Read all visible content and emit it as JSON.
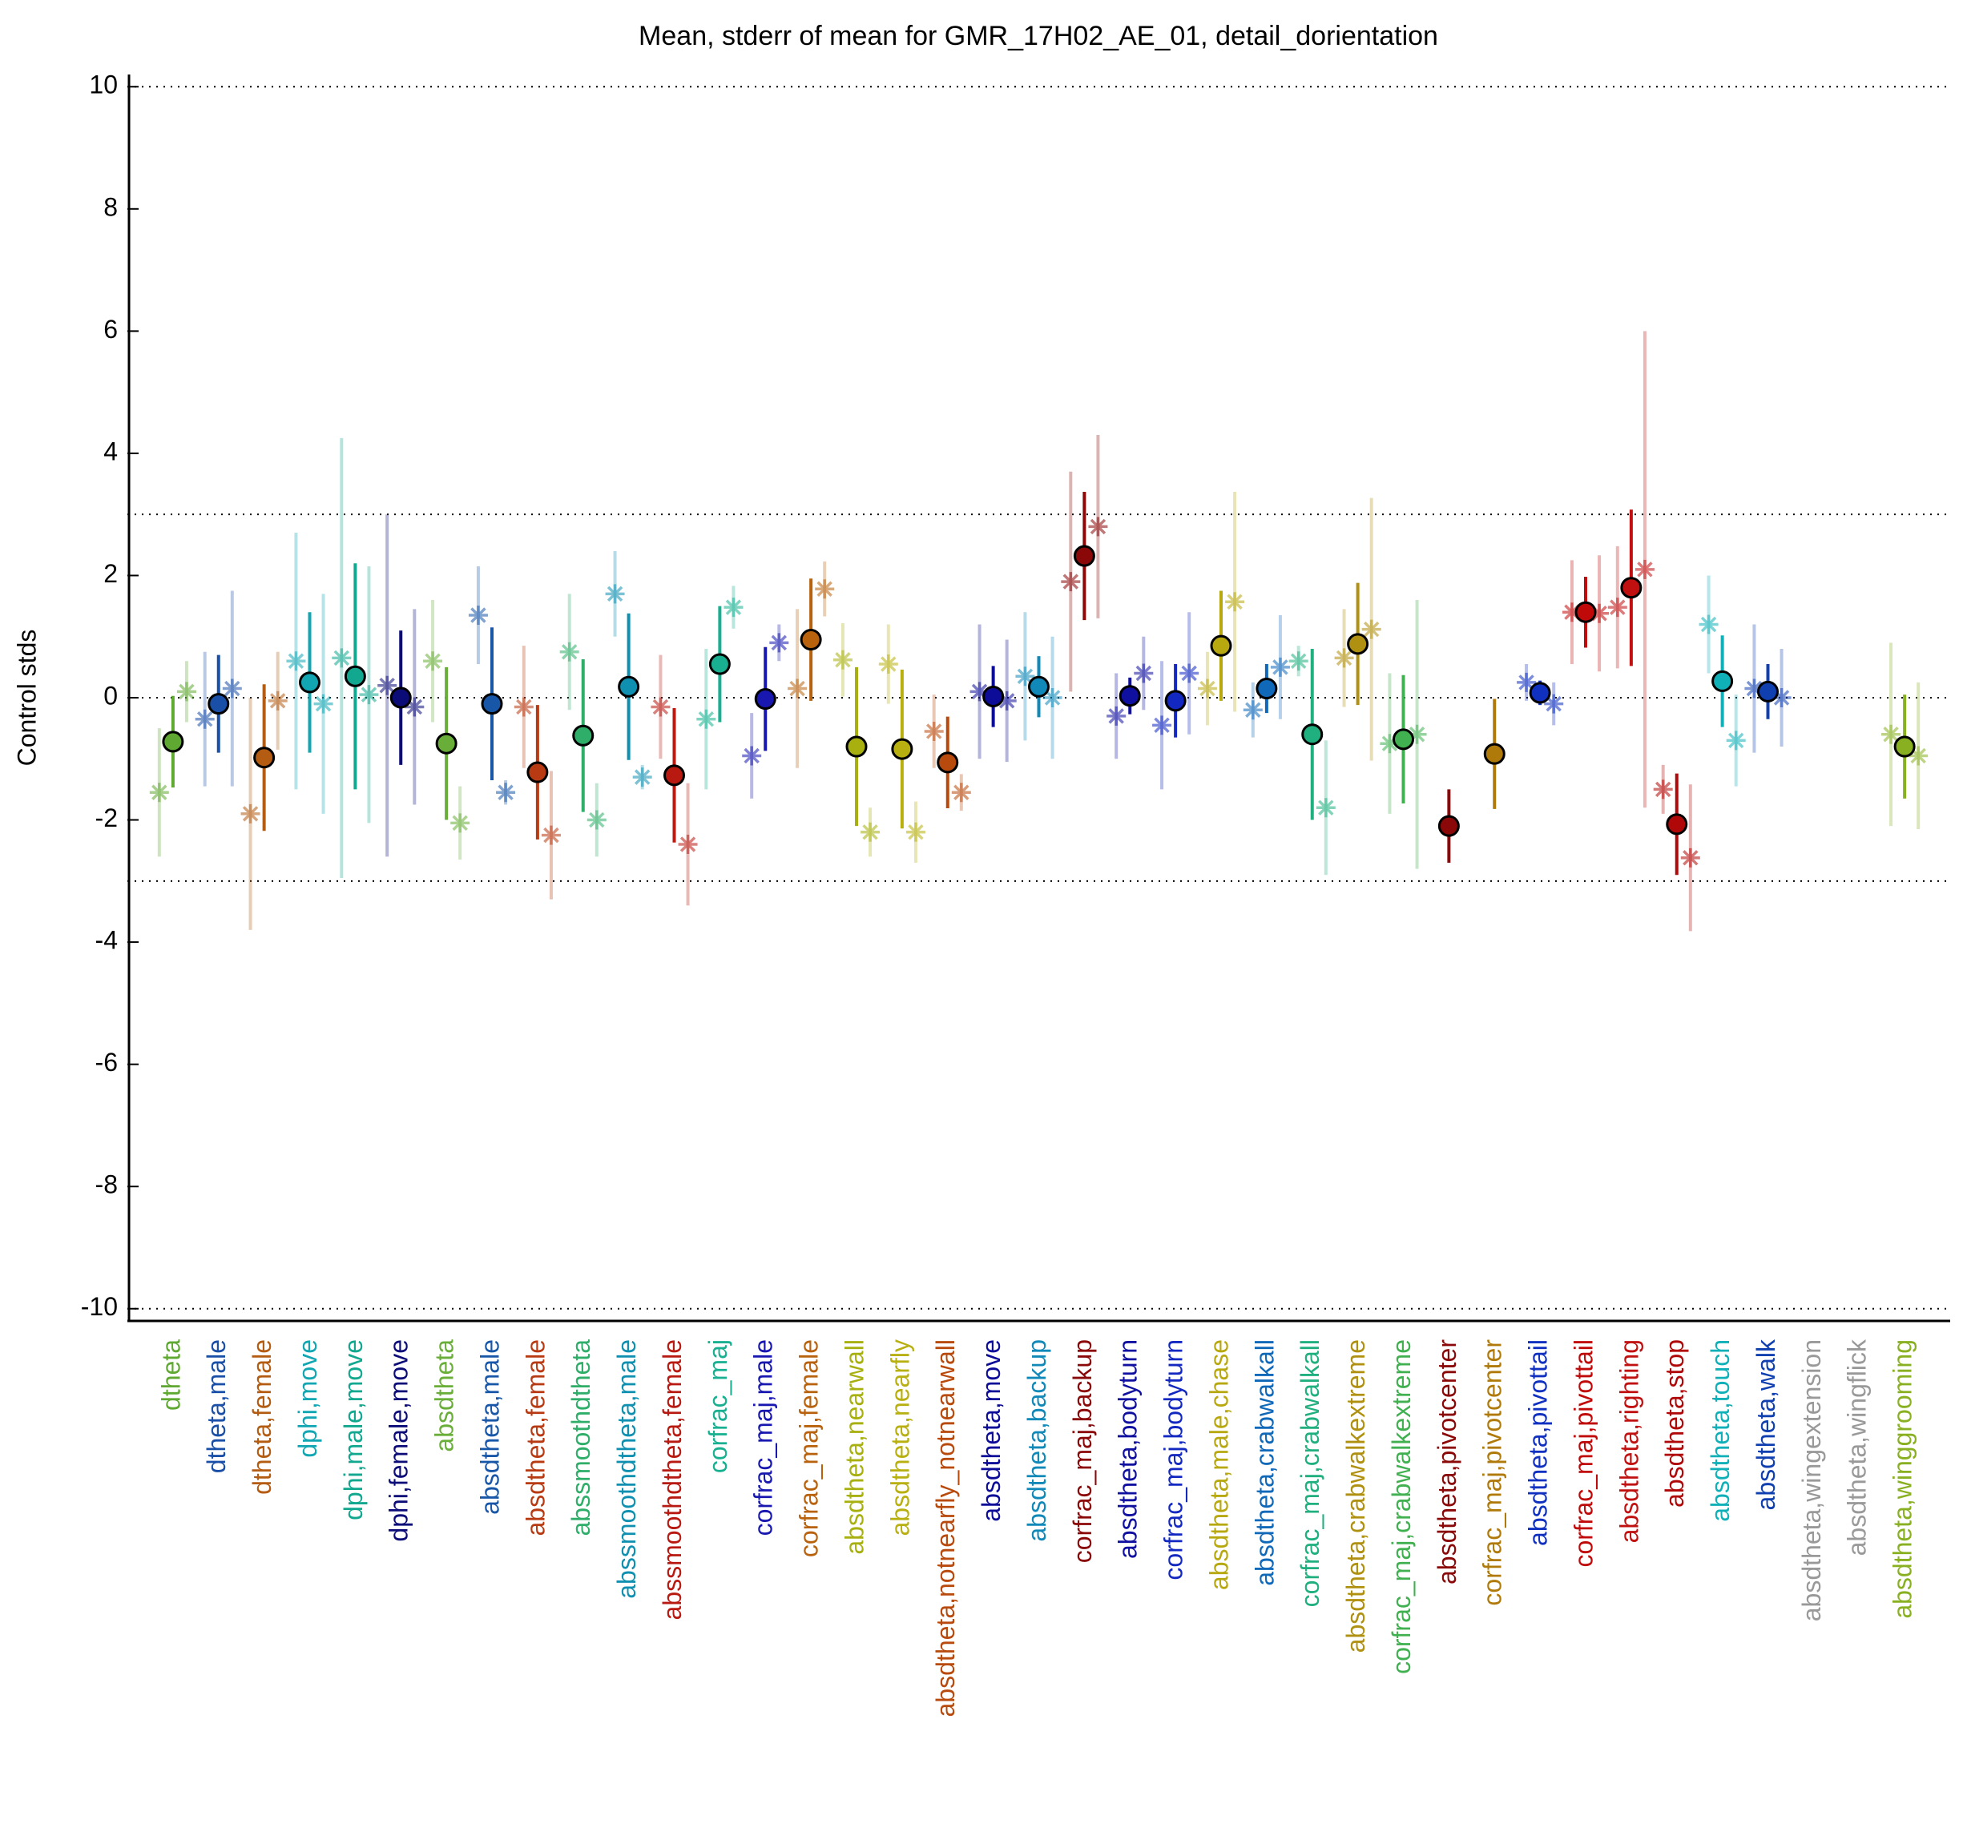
{
  "chart_data": {
    "type": "errorbar",
    "title": "Mean, stderr of mean for GMR_17H02_AE_01, detail_dorientation",
    "y_label": "Control stds",
    "categories": [
      "dtheta",
      "dtheta,male",
      "dtheta,female",
      "dphi,move",
      "dphi,male,move",
      "dphi,female,move",
      "absdtheta",
      "absdtheta,male",
      "absdtheta,female",
      "abssmoothdtheta",
      "abssmoothdtheta,male",
      "abssmoothdtheta,female",
      "corfrac_maj",
      "corfrac_maj,male",
      "corfrac_maj,female",
      "absdtheta,nearwall",
      "absdtheta,nearfly",
      "absdtheta,notnearfly_notnearwall",
      "absdtheta,move",
      "absdtheta,backup",
      "corfrac_maj,backup",
      "absdtheta,bodyturn",
      "corfrac_maj,bodyturn",
      "absdtheta,male,chase",
      "absdtheta,crabwalkall",
      "corfrac_maj,crabwalkall",
      "absdtheta,crabwalkextreme",
      "corfrac_maj,crabwalkextreme",
      "absdtheta,pivotcenter",
      "corfrac_maj,pivotcenter",
      "absdtheta,pivottail",
      "corfrac_maj,pivottail",
      "absdtheta,righting",
      "absdtheta,stop",
      "absdtheta,touch",
      "absdtheta,walk",
      "absdtheta,wingextension",
      "absdtheta,wingflick",
      "absdtheta,winggrooming"
    ],
    "colors": [
      "#5fa832",
      "#1a4fa8",
      "#b35c12",
      "#12a6b3",
      "#12a890",
      "#0c0c78",
      "#6aae3a",
      "#1857a8",
      "#b83a12",
      "#2fae6a",
      "#1090b0",
      "#b81a12",
      "#18b090",
      "#1818b0",
      "#b8620e",
      "#a8b010",
      "#b8b010",
      "#b84a0e",
      "#0c0c98",
      "#1088b8",
      "#8a0808",
      "#1010a0",
      "#1228c0",
      "#b8a810",
      "#1068b8",
      "#20b080",
      "#b09010",
      "#40b050",
      "#8a0808",
      "#b07a0a",
      "#1030c0",
      "#c00a0a",
      "#c01010",
      "#b00808",
      "#10b0b8",
      "#1040b0",
      "#999999",
      "#999999",
      "#88b020"
    ],
    "values": [
      -0.72,
      -0.1,
      -0.98,
      0.25,
      0.35,
      0.0,
      -0.75,
      -0.1,
      -1.22,
      -0.62,
      0.18,
      -1.27,
      0.55,
      -0.02,
      0.95,
      -0.8,
      -0.84,
      -1.06,
      0.02,
      0.18,
      2.32,
      0.03,
      -0.05,
      0.85,
      0.15,
      -0.6,
      0.88,
      -0.68,
      -2.1,
      -0.92,
      0.08,
      1.4,
      1.8,
      -2.07,
      0.27,
      0.1,
      null,
      null,
      -0.8
    ],
    "errors": [
      0.75,
      0.8,
      1.2,
      1.15,
      1.85,
      1.1,
      1.25,
      1.25,
      1.1,
      1.25,
      1.2,
      1.1,
      0.95,
      0.85,
      1.0,
      1.3,
      1.3,
      0.75,
      0.5,
      0.5,
      1.05,
      0.3,
      0.6,
      0.9,
      0.4,
      1.4,
      1.0,
      1.05,
      0.6,
      0.9,
      0.2,
      0.58,
      1.28,
      0.83,
      0.75,
      0.45,
      null,
      null,
      0.85
    ],
    "left_values": [
      -1.55,
      -0.35,
      -1.9,
      0.6,
      0.65,
      0.2,
      0.6,
      1.35,
      -0.15,
      0.75,
      1.7,
      -0.15,
      -0.35,
      -0.95,
      0.15,
      0.62,
      0.55,
      -0.55,
      0.1,
      0.35,
      1.9,
      -0.3,
      -0.45,
      0.15,
      -0.2,
      0.6,
      0.65,
      -0.75,
      null,
      null,
      0.25,
      1.4,
      1.48,
      -1.5,
      1.2,
      0.15,
      null,
      null,
      -0.6
    ],
    "left_errors": [
      1.05,
      1.1,
      1.9,
      2.1,
      3.6,
      2.8,
      1.0,
      0.8,
      1.0,
      0.95,
      0.7,
      0.85,
      1.15,
      0.7,
      1.3,
      0.6,
      0.65,
      0.6,
      1.1,
      1.05,
      1.8,
      0.7,
      1.05,
      0.6,
      0.45,
      0.25,
      0.8,
      1.15,
      null,
      null,
      0.3,
      0.85,
      1.0,
      0.4,
      0.8,
      1.05,
      null,
      null,
      1.5
    ],
    "right_values": [
      0.1,
      0.15,
      -0.05,
      -0.1,
      0.05,
      -0.15,
      -2.05,
      -1.55,
      -2.25,
      -2.0,
      -1.3,
      -2.4,
      1.48,
      0.9,
      1.78,
      -2.2,
      -2.2,
      -1.55,
      -0.05,
      0.0,
      2.8,
      0.4,
      0.4,
      1.57,
      0.5,
      -1.8,
      1.12,
      -0.6,
      null,
      null,
      -0.1,
      1.38,
      2.1,
      -2.62,
      -0.7,
      0.0,
      null,
      null,
      -0.95
    ],
    "right_errors": [
      0.5,
      1.6,
      0.8,
      1.8,
      2.1,
      1.6,
      0.6,
      0.2,
      1.05,
      0.6,
      0.2,
      1.0,
      0.35,
      0.3,
      0.45,
      0.4,
      0.5,
      0.3,
      1.0,
      1.0,
      1.5,
      0.6,
      1.0,
      1.8,
      0.85,
      1.1,
      2.15,
      2.2,
      null,
      null,
      0.35,
      0.95,
      3.9,
      1.2,
      0.75,
      0.8,
      null,
      null,
      1.2
    ],
    "xlim": [
      0,
      40
    ],
    "ylim": [
      -10.2,
      10.2
    ],
    "yticks": [
      -10,
      -8,
      -6,
      -4,
      -2,
      0,
      2,
      4,
      6,
      8,
      10
    ],
    "hlines": [
      -10,
      -3,
      0,
      3,
      10
    ]
  }
}
